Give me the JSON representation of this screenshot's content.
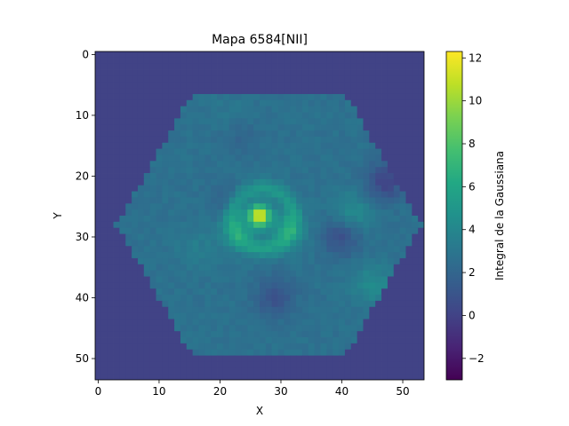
{
  "chart_data": {
    "type": "heatmap",
    "title": "Mapa 6584[NII]",
    "xlabel": "X",
    "ylabel": "Y",
    "grid_shape": [
      54,
      54
    ],
    "xlim": [
      -0.5,
      53.5
    ],
    "ylim": [
      53.5,
      -0.5
    ],
    "x_ticks": [
      0,
      10,
      20,
      30,
      40,
      50
    ],
    "y_ticks": [
      0,
      10,
      20,
      30,
      40,
      50
    ],
    "x_tick_labels": [
      "0",
      "10",
      "20",
      "30",
      "40",
      "50"
    ],
    "y_tick_labels": [
      "0",
      "10",
      "20",
      "30",
      "40",
      "50"
    ],
    "colormap": "viridis",
    "vmin": -3.0,
    "vmax": 12.3,
    "background_value": 0.0,
    "colorbar": {
      "label": "Integral de la Gaussiana",
      "ticks": [
        -2,
        0,
        2,
        4,
        6,
        8,
        10,
        12
      ],
      "tick_labels": [
        "−2",
        "0",
        "2",
        "4",
        "6",
        "8",
        "10",
        "12"
      ]
    },
    "field": {
      "shape": "hexagon",
      "center": [
        28,
        28
      ],
      "radius": 25,
      "base_value": 2.7
    },
    "features": [
      {
        "kind": "peak",
        "x": 26.5,
        "y": 26.5,
        "value": 11.5,
        "note": "bright nucleus"
      },
      {
        "kind": "ring",
        "x": 27,
        "y": 27,
        "r": 5,
        "value": 6.5,
        "note": "bright ring around nucleus"
      },
      {
        "kind": "blob",
        "x": 23,
        "y": 29,
        "value": 6.0
      },
      {
        "kind": "blob",
        "x": 31,
        "y": 29,
        "value": 6.0
      },
      {
        "kind": "blob",
        "x": 45,
        "y": 38,
        "value": 5.5
      },
      {
        "kind": "blob",
        "x": 42,
        "y": 26,
        "value": 5.5
      },
      {
        "kind": "blob",
        "x": 22,
        "y": 11,
        "value": 4.0
      },
      {
        "kind": "blob",
        "x": 16,
        "y": 32,
        "value": 4.0
      },
      {
        "kind": "hole",
        "x": 40,
        "y": 30,
        "value": -0.5
      },
      {
        "kind": "hole",
        "x": 29,
        "y": 40,
        "value": -0.5
      },
      {
        "kind": "hole",
        "x": 23,
        "y": 13,
        "value": 1.0
      },
      {
        "kind": "hole",
        "x": 47,
        "y": 21,
        "value": -1.5
      },
      {
        "kind": "hole",
        "x": 21,
        "y": 24,
        "value": 1.5
      }
    ]
  }
}
